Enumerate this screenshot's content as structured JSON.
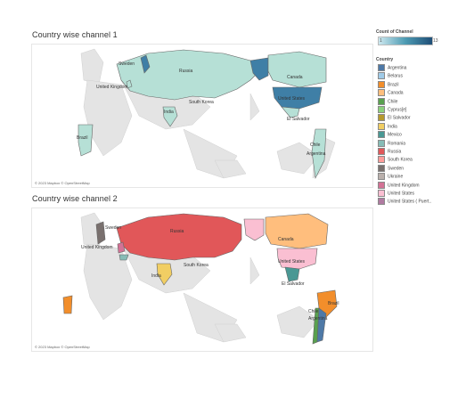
{
  "sheet1": {
    "title": "Country wise channel 1",
    "attribution": "© 2023 Mapbox © OpenStreetMap",
    "labels": {
      "russia": "Russia",
      "sweden": "Sweden",
      "uk": "United Kingdom",
      "canada": "Canada",
      "usa": "United States",
      "korea": "South Korea",
      "india": "India",
      "elsalvador": "El Salvador",
      "chile": "Chile",
      "argentina": "Argentina",
      "brazil": "Brazil"
    }
  },
  "sheet2": {
    "title": "Country wise channel 2",
    "attribution": "© 2023 Mapbox © OpenStreetMap",
    "labels": {
      "russia": "Russia",
      "sweden": "Sweden",
      "uk": "United Kingdom",
      "canada": "Canada",
      "usa": "United States",
      "korea": "South Korea",
      "india": "India",
      "elsalvador": "El Salvador",
      "chile": "Chile",
      "argentina": "Argentina",
      "brazil": "Brazil"
    }
  },
  "legend": {
    "count_title": "Count of Channel",
    "count_min": "1",
    "count_max": "13",
    "country_title": "Country",
    "items": [
      {
        "label": "Argentina",
        "color": "#4e79a7"
      },
      {
        "label": "Belarus",
        "color": "#a0cbe8"
      },
      {
        "label": "Brazil",
        "color": "#f28e2b"
      },
      {
        "label": "Canada",
        "color": "#ffbe7d"
      },
      {
        "label": "Chile",
        "color": "#59a14f"
      },
      {
        "label": "Cyprus[e]",
        "color": "#8cd17d"
      },
      {
        "label": "El Salvador",
        "color": "#b6992d"
      },
      {
        "label": "India",
        "color": "#f1ce63"
      },
      {
        "label": "Mexico",
        "color": "#499894"
      },
      {
        "label": "Romania",
        "color": "#86bcb6"
      },
      {
        "label": "Russia",
        "color": "#e15759"
      },
      {
        "label": "South Korea",
        "color": "#ff9d9a"
      },
      {
        "label": "Sweden",
        "color": "#79706e"
      },
      {
        "label": "Ukraine",
        "color": "#bab0ac"
      },
      {
        "label": "United Kingdom",
        "color": "#d37295"
      },
      {
        "label": "United States",
        "color": "#fabfd2"
      },
      {
        "label": "United States ( Puert..",
        "color": "#b07aa1"
      }
    ]
  },
  "colors": {
    "map1_light": "#b6e0d6",
    "map1_dark": "#3f7fa6",
    "land": "#e4e4e4"
  }
}
